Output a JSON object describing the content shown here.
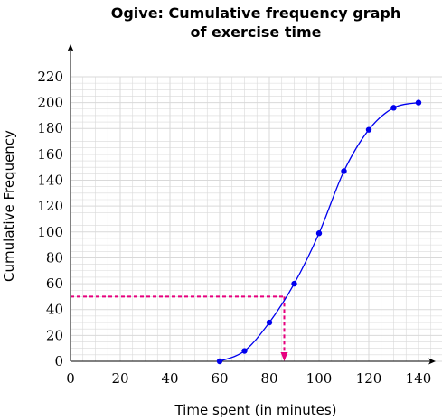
{
  "chart_data": {
    "type": "line",
    "title_lines": [
      "Ogive: Cumulative frequency graph",
      "of exercise time"
    ],
    "xlabel": "Time spent (in minutes)",
    "ylabel": "Cumulative Frequency",
    "xlim": [
      0,
      150
    ],
    "ylim": [
      0,
      220
    ],
    "x_ticks": [
      0,
      20,
      40,
      60,
      80,
      100,
      120,
      140
    ],
    "y_ticks": [
      0,
      20,
      40,
      60,
      80,
      100,
      120,
      140,
      160,
      180,
      200,
      220
    ],
    "grid": true,
    "series": [
      {
        "x": [
          60,
          70,
          80,
          90,
          100,
          110,
          120,
          130,
          140
        ],
        "y": [
          0,
          8,
          30,
          60,
          99,
          147,
          179,
          196,
          200
        ]
      }
    ],
    "median_guide": {
      "x": 86,
      "y": 50
    },
    "colors": {
      "series": "#0000ee",
      "guide": "#e6007e",
      "grid": "#d9d9d9"
    }
  }
}
